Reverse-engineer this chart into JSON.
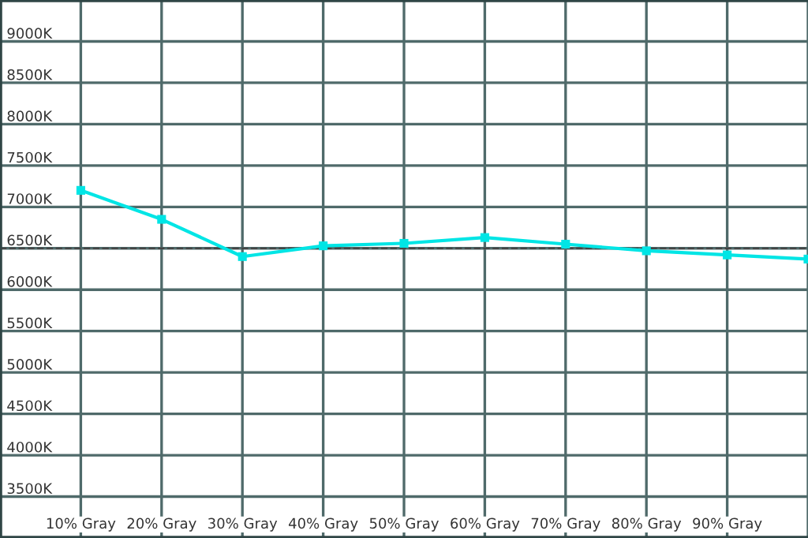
{
  "chart_data": {
    "type": "line",
    "categories": [
      "10% Gray",
      "20% Gray",
      "30% Gray",
      "40% Gray",
      "50% Gray",
      "60% Gray",
      "70% Gray",
      "80% Gray",
      "90% Gray",
      null
    ],
    "series": [
      {
        "color": "#00e5e5",
        "values": [
          7200,
          6850,
          6400,
          6530,
          6560,
          6630,
          6550,
          6470,
          6420,
          6370
        ]
      }
    ],
    "ylim": [
      3000,
      9500
    ],
    "yticks": [
      {
        "value": 3500,
        "label": "3500K"
      },
      {
        "value": 4000,
        "label": "4000K"
      },
      {
        "value": 4500,
        "label": "4500K"
      },
      {
        "value": 5000,
        "label": "5000K"
      },
      {
        "value": 5500,
        "label": "5500K"
      },
      {
        "value": 6000,
        "label": "6000K"
      },
      {
        "value": 6500,
        "label": "6500K"
      },
      {
        "value": 7000,
        "label": "7000K"
      },
      {
        "value": 7500,
        "label": "7500K"
      },
      {
        "value": 8000,
        "label": "8000K"
      },
      {
        "value": 8500,
        "label": "8500K"
      },
      {
        "value": 9000,
        "label": "9000K"
      }
    ],
    "ref_lines": [
      {
        "axis": "y",
        "value": 6500,
        "color": "#444444",
        "line_style": "dashed"
      }
    ],
    "grid": true,
    "marker": "square",
    "line_style": "solid"
  }
}
